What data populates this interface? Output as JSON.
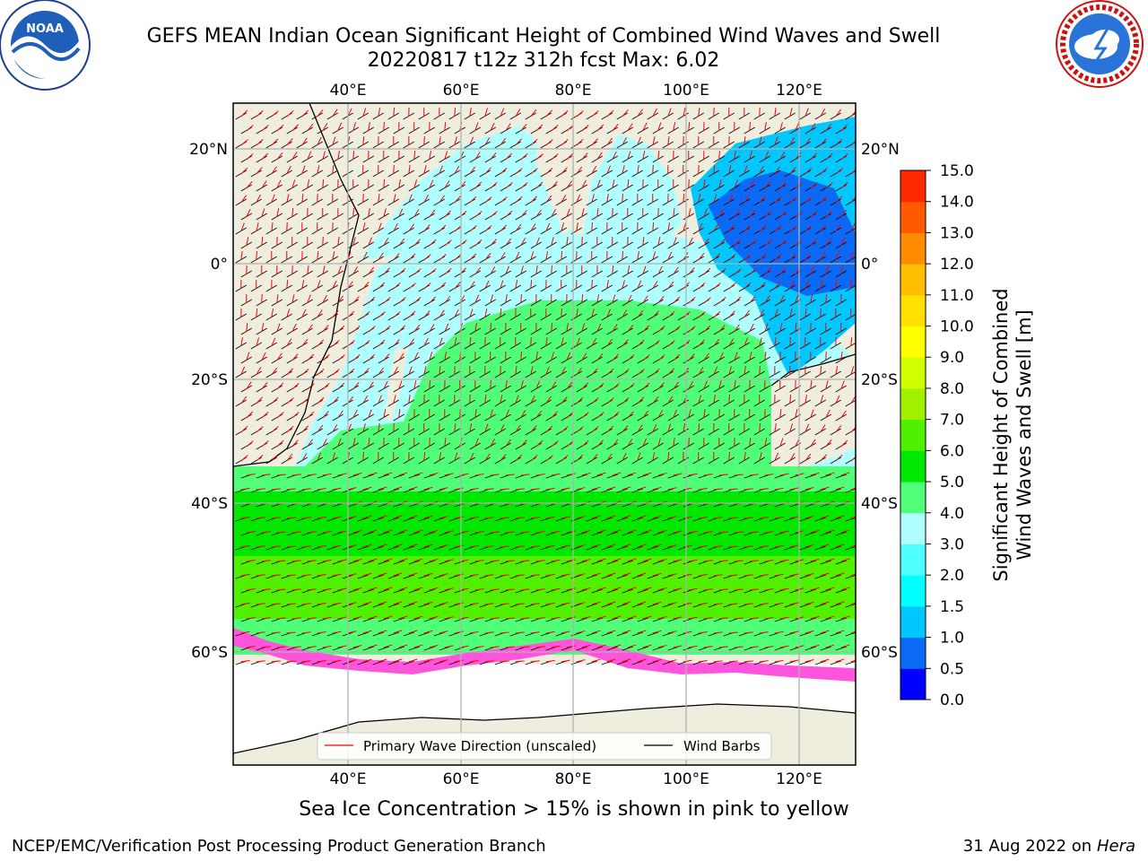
{
  "title": {
    "line1": "GEFS MEAN Indian Ocean Significant Height of Combined Wind Waves and Swell",
    "line2": "20220817 t12z 312h fcst   Max: 6.02"
  },
  "logos": {
    "left": "NOAA",
    "right": "NATIONAL WEATHER SERVICE"
  },
  "map": {
    "lon_labels": [
      "40°E",
      "60°E",
      "80°E",
      "100°E",
      "120°E"
    ],
    "lat_labels": [
      "20°N",
      "0°",
      "20°S",
      "40°S",
      "60°S"
    ],
    "legend": {
      "wave": "Primary Wave Direction (unscaled)",
      "wind": "Wind Barbs"
    }
  },
  "colorbar": {
    "label_line1": "Significant Height of Combined",
    "label_line2": "Wind Waves and Swell [m]",
    "ticks": [
      "0.0",
      "0.5",
      "1.0",
      "1.5",
      "2.0",
      "3.0",
      "4.0",
      "5.0",
      "6.0",
      "7.0",
      "8.0",
      "9.0",
      "10.0",
      "11.0",
      "12.0",
      "13.0",
      "14.0",
      "15.0"
    ],
    "colors": [
      "#0000ff",
      "#0a6af5",
      "#00c8ff",
      "#00ffff",
      "#50ffff",
      "#b0ffff",
      "#50ff78",
      "#00e800",
      "#50f000",
      "#a0f000",
      "#d0ff00",
      "#ffff00",
      "#ffe000",
      "#ffbe00",
      "#ff8c00",
      "#ff5a00",
      "#ff2800",
      "#ff0000"
    ]
  },
  "note": "Sea Ice Concentration > 15% is shown in pink to yellow",
  "footer": {
    "left": "NCEP/EMC/Verification Post Processing Product Generation Branch",
    "right_date": "31 Aug 2022 on",
    "right_host": "Hera"
  },
  "colors": {
    "land": "#efedde",
    "ice_free_ocean_low": "#b0ffff",
    "ocean_mid": "#50ff78",
    "ocean_high": "#00e800",
    "ocean_band": "#50f000",
    "ice_margin": "#ff55dd",
    "wave_arrow": "#ff0000",
    "wind_barb": "#000000",
    "grid": "#b0b0b0"
  }
}
